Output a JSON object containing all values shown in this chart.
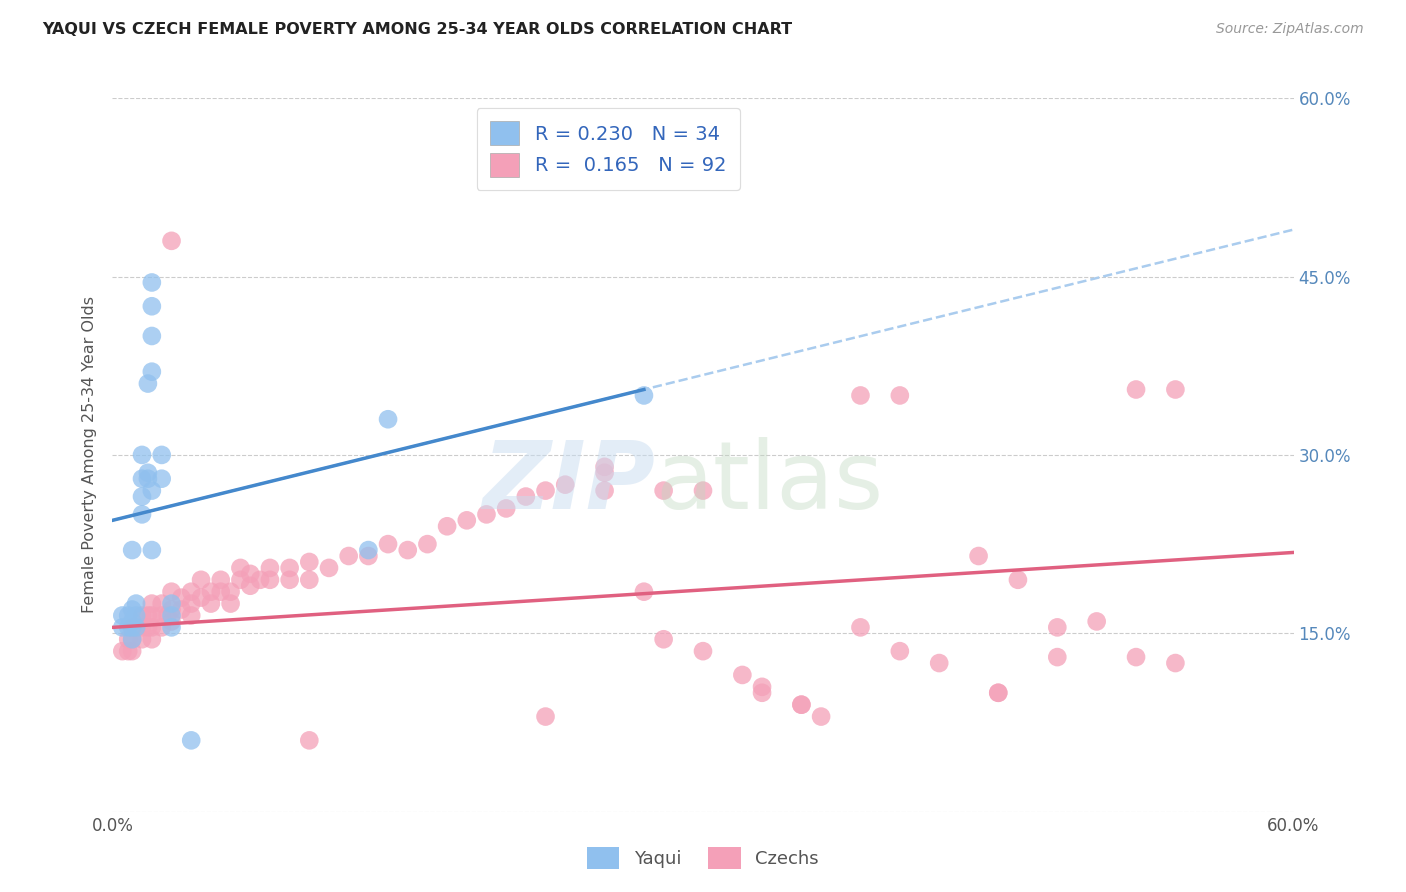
{
  "title": "YAQUI VS CZECH FEMALE POVERTY AMONG 25-34 YEAR OLDS CORRELATION CHART",
  "source": "Source: ZipAtlas.com",
  "ylabel": "Female Poverty Among 25-34 Year Olds",
  "xlim": [
    0,
    0.6
  ],
  "ylim": [
    0,
    0.6
  ],
  "legend_r1": "0.230",
  "legend_n1": "34",
  "legend_r2": "0.165",
  "legend_n2": "92",
  "color_yaqui": "#90C0EE",
  "color_czechs": "#F4A0B8",
  "color_line_yaqui": "#4488CC",
  "color_line_czechs": "#E06080",
  "color_dashed": "#AACCEE",
  "yaqui_line_x0": 0.0,
  "yaqui_line_y0": 0.245,
  "yaqui_line_x1": 0.27,
  "yaqui_line_y1": 0.355,
  "czechs_line_x0": 0.0,
  "czechs_line_y0": 0.155,
  "czechs_line_x1": 0.6,
  "czechs_line_y1": 0.218,
  "yaqui_x": [
    0.005,
    0.005,
    0.008,
    0.008,
    0.01,
    0.01,
    0.01,
    0.01,
    0.01,
    0.012,
    0.012,
    0.012,
    0.015,
    0.015,
    0.015,
    0.015,
    0.018,
    0.018,
    0.018,
    0.02,
    0.02,
    0.02,
    0.02,
    0.02,
    0.02,
    0.025,
    0.025,
    0.03,
    0.03,
    0.03,
    0.04,
    0.13,
    0.14,
    0.27
  ],
  "yaqui_y": [
    0.155,
    0.165,
    0.155,
    0.165,
    0.145,
    0.155,
    0.16,
    0.17,
    0.22,
    0.155,
    0.165,
    0.175,
    0.25,
    0.265,
    0.28,
    0.3,
    0.28,
    0.285,
    0.36,
    0.37,
    0.4,
    0.425,
    0.445,
    0.22,
    0.27,
    0.28,
    0.3,
    0.155,
    0.165,
    0.175,
    0.06,
    0.22,
    0.33,
    0.35
  ],
  "czechs_x": [
    0.005,
    0.008,
    0.008,
    0.01,
    0.01,
    0.01,
    0.015,
    0.015,
    0.015,
    0.018,
    0.018,
    0.02,
    0.02,
    0.02,
    0.02,
    0.025,
    0.025,
    0.025,
    0.028,
    0.03,
    0.03,
    0.03,
    0.035,
    0.035,
    0.04,
    0.04,
    0.04,
    0.045,
    0.045,
    0.05,
    0.05,
    0.055,
    0.055,
    0.06,
    0.06,
    0.065,
    0.065,
    0.07,
    0.07,
    0.075,
    0.08,
    0.08,
    0.09,
    0.09,
    0.1,
    0.1,
    0.11,
    0.12,
    0.13,
    0.14,
    0.15,
    0.16,
    0.17,
    0.18,
    0.19,
    0.2,
    0.21,
    0.22,
    0.23,
    0.25,
    0.25,
    0.27,
    0.28,
    0.3,
    0.32,
    0.33,
    0.35,
    0.36,
    0.38,
    0.4,
    0.42,
    0.44,
    0.46,
    0.48,
    0.5,
    0.52,
    0.54,
    0.38,
    0.4,
    0.52,
    0.54,
    0.03,
    0.25,
    0.1,
    0.22,
    0.28,
    0.3,
    0.33,
    0.35,
    0.45,
    0.45,
    0.48
  ],
  "czechs_y": [
    0.135,
    0.135,
    0.145,
    0.135,
    0.145,
    0.155,
    0.145,
    0.155,
    0.165,
    0.155,
    0.165,
    0.145,
    0.155,
    0.165,
    0.175,
    0.155,
    0.165,
    0.175,
    0.165,
    0.16,
    0.17,
    0.185,
    0.17,
    0.18,
    0.165,
    0.175,
    0.185,
    0.18,
    0.195,
    0.175,
    0.185,
    0.185,
    0.195,
    0.175,
    0.185,
    0.195,
    0.205,
    0.19,
    0.2,
    0.195,
    0.195,
    0.205,
    0.195,
    0.205,
    0.195,
    0.21,
    0.205,
    0.215,
    0.215,
    0.225,
    0.22,
    0.225,
    0.24,
    0.245,
    0.25,
    0.255,
    0.265,
    0.27,
    0.275,
    0.27,
    0.285,
    0.185,
    0.145,
    0.135,
    0.115,
    0.105,
    0.09,
    0.08,
    0.155,
    0.135,
    0.125,
    0.215,
    0.195,
    0.155,
    0.16,
    0.13,
    0.125,
    0.35,
    0.35,
    0.355,
    0.355,
    0.48,
    0.29,
    0.06,
    0.08,
    0.27,
    0.27,
    0.1,
    0.09,
    0.1,
    0.1,
    0.13
  ]
}
